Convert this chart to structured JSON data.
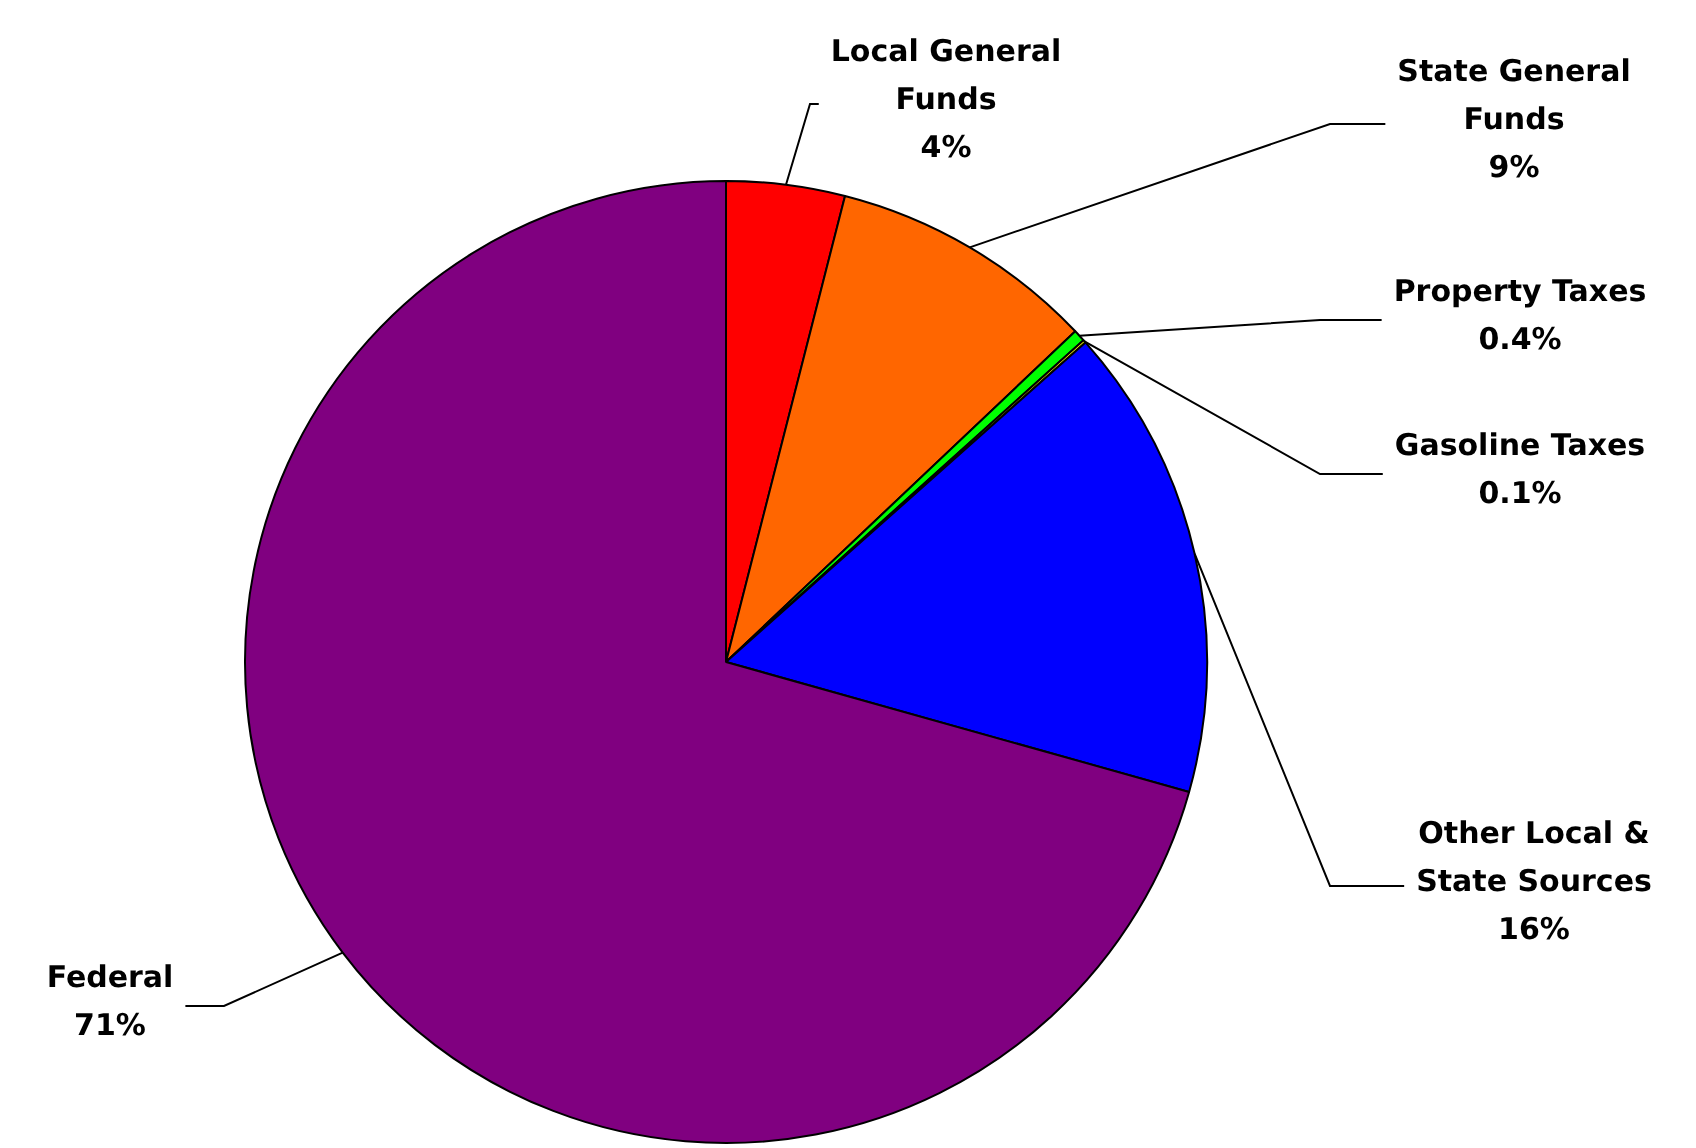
{
  "chart_data": {
    "type": "pie",
    "categories": [
      "Local General Funds",
      "State General Funds",
      "Property Taxes",
      "Gasoline Taxes",
      "Other Local & State Sources",
      "Federal"
    ],
    "values": [
      4,
      9,
      0.4,
      0.1,
      16,
      71
    ],
    "colors": [
      "#ff0000",
      "#ff6600",
      "#00ff00",
      "#ffff00",
      "#0000ff",
      "#800080"
    ],
    "value_labels": [
      "4%",
      "9%",
      "0.4%",
      "0.1%",
      "16%",
      "71%"
    ],
    "legend": false
  }
}
